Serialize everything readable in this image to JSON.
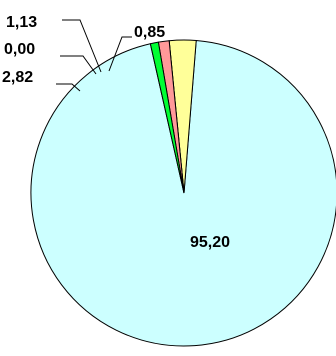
{
  "chart_data": {
    "type": "pie",
    "title": "",
    "slices": [
      {
        "value": 95.2,
        "label": "95,20",
        "color": "#ccffff"
      },
      {
        "value": 2.82,
        "label": "2,82",
        "color": "#ffff99"
      },
      {
        "value": 0.0,
        "label": "0,00",
        "color": "#ffff99"
      },
      {
        "value": 1.13,
        "label": "1,13",
        "color": "#ff9999"
      },
      {
        "value": 0.85,
        "label": "0,85",
        "color": "#00ff33"
      }
    ]
  }
}
